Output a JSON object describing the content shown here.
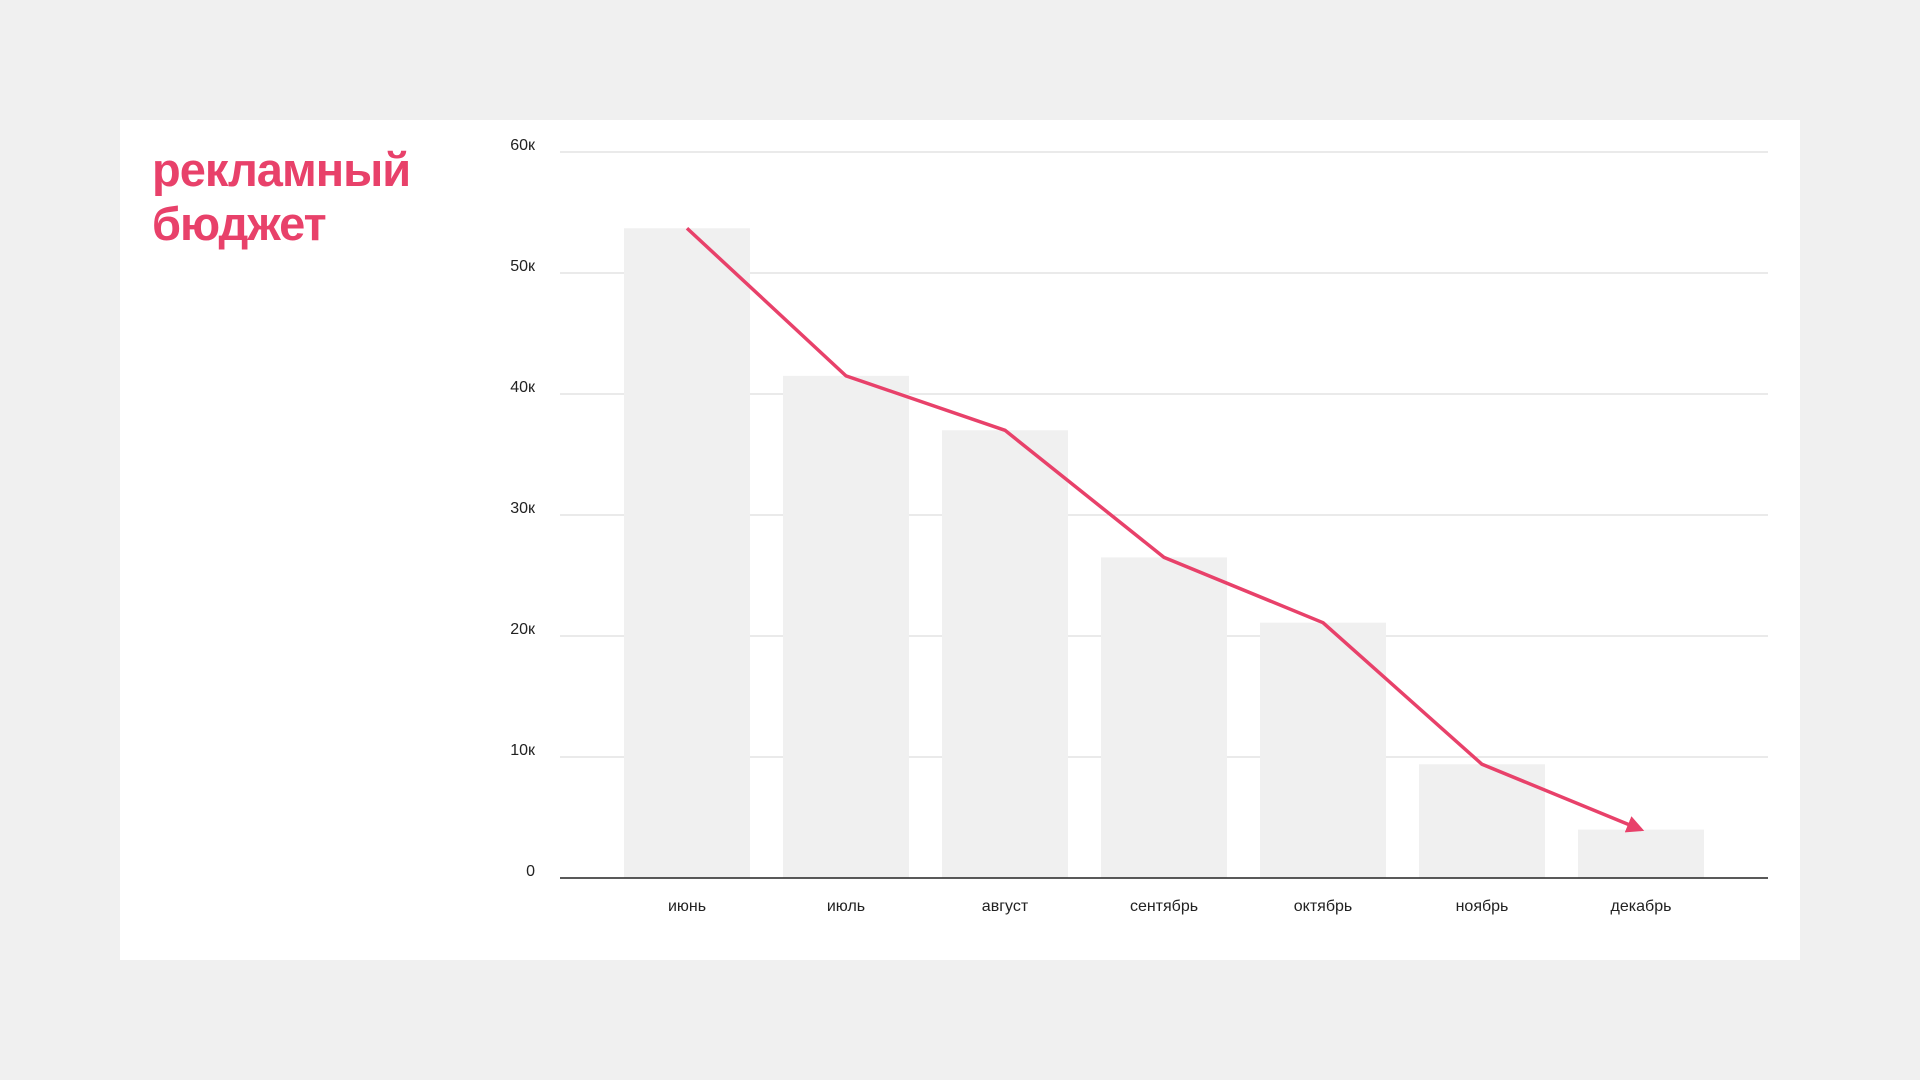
{
  "chart_data": {
    "type": "bar",
    "title": "рекламный бюджет",
    "categories": [
      "июнь",
      "июль",
      "август",
      "сентябрь",
      "октябрь",
      "ноябрь",
      "декабрь"
    ],
    "values": [
      53700,
      41500,
      37000,
      26500,
      21100,
      9400,
      4000
    ],
    "bar_color": "#f0f0f0",
    "line_color": "#e8416a",
    "ylim": [
      0,
      60000
    ],
    "yticks": [
      0,
      {
        "value": 10000,
        "label": "10к"
      },
      {
        "value": 20000,
        "label": "20к"
      },
      {
        "value": 30000,
        "label": "30к"
      },
      {
        "value": 40000,
        "label": "40к"
      },
      {
        "value": 50000,
        "label": "50к"
      },
      {
        "value": 60000,
        "label": "60к"
      }
    ],
    "grid": true
  }
}
